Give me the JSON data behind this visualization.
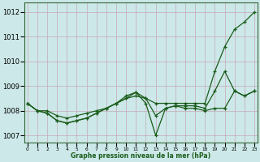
{
  "bg_color": "#cce8e8",
  "grid_color": "#c8a8b8",
  "line_color": "#1a5c1a",
  "title": "Graphe pression niveau de la mer (hPa)",
  "ylabel_ticks": [
    1007,
    1008,
    1009,
    1010,
    1011,
    1012
  ],
  "xlim": [
    -0.3,
    23.3
  ],
  "ylim": [
    1006.7,
    1012.4
  ],
  "hours": [
    0,
    1,
    2,
    3,
    4,
    5,
    6,
    7,
    8,
    9,
    10,
    11,
    12,
    13,
    14,
    15,
    16,
    17,
    18,
    19,
    20,
    21,
    22,
    23
  ],
  "line1": [
    1008.3,
    1008.0,
    1008.0,
    1007.8,
    1007.7,
    1007.8,
    1007.9,
    1008.0,
    1008.1,
    1008.3,
    1008.5,
    1008.6,
    1008.5,
    1008.3,
    1008.3,
    1008.3,
    1008.3,
    1008.3,
    1008.3,
    1009.6,
    1010.6,
    1011.3,
    1011.6,
    1012.0
  ],
  "line2": [
    1008.3,
    1008.0,
    1007.9,
    1007.6,
    1007.5,
    1007.6,
    1007.7,
    1007.9,
    1008.1,
    1008.3,
    1008.6,
    1008.75,
    1008.5,
    1007.8,
    1008.1,
    1008.2,
    1008.2,
    1008.2,
    1008.1,
    1008.8,
    1009.6,
    1008.8,
    1008.6,
    1008.8
  ],
  "line3": [
    1008.3,
    1008.0,
    1007.9,
    1007.6,
    1007.5,
    1007.6,
    1007.7,
    1007.9,
    1008.1,
    1008.3,
    1008.5,
    1008.75,
    1008.3,
    1007.0,
    1008.1,
    1008.2,
    1008.1,
    1008.1,
    1008.0,
    1008.1,
    1008.1,
    1008.8,
    1008.6,
    1008.8
  ]
}
